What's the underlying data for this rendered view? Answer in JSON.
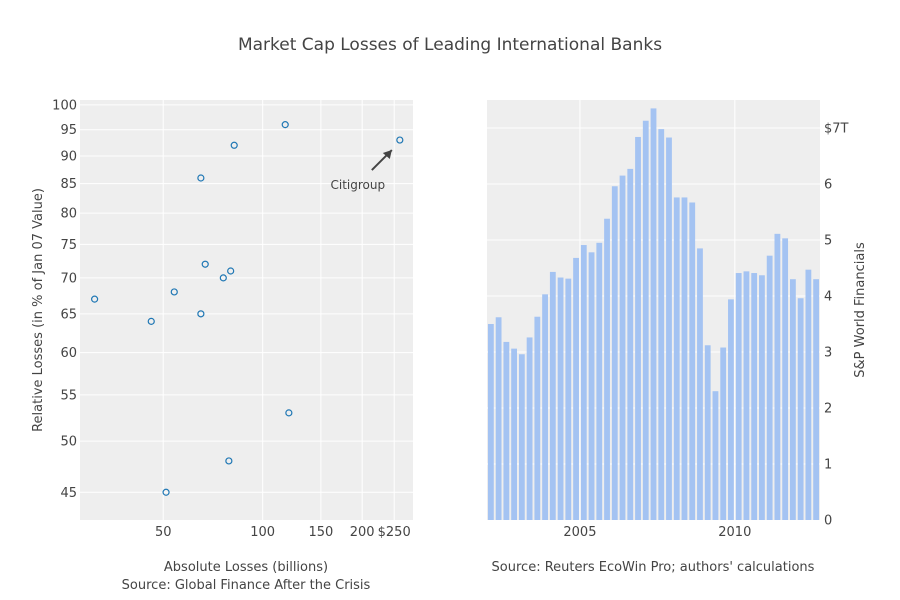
{
  "title": "Market Cap Losses of Leading International Banks",
  "chart_data": [
    {
      "type": "scatter",
      "x_scale": "log",
      "y_scale": "log",
      "xlim": [
        28,
        285
      ],
      "ylim": [
        42.5,
        101
      ],
      "x_ticks": [
        50,
        100,
        150,
        200,
        250
      ],
      "x_tick_labels": [
        "50",
        "100",
        "150",
        "200",
        "$250"
      ],
      "y_ticks": [
        45,
        50,
        55,
        60,
        65,
        70,
        75,
        80,
        85,
        90,
        95,
        100
      ],
      "y_tick_labels": [
        "45",
        "50",
        "55",
        "60",
        "65",
        "70",
        "75",
        "80",
        "85",
        "90",
        "95",
        "100"
      ],
      "xlabel": "Absolute Losses (billions)",
      "xlabel_source": "Source: Global Finance After the Crisis",
      "ylabel": "Relative Losses (in % of Jan 07 Value)",
      "grid": true,
      "points": [
        {
          "x": 31,
          "y": 67
        },
        {
          "x": 46,
          "y": 64
        },
        {
          "x": 51,
          "y": 45
        },
        {
          "x": 54,
          "y": 68
        },
        {
          "x": 65,
          "y": 65
        },
        {
          "x": 65,
          "y": 86
        },
        {
          "x": 67,
          "y": 72
        },
        {
          "x": 76,
          "y": 70
        },
        {
          "x": 79,
          "y": 48
        },
        {
          "x": 80,
          "y": 71
        },
        {
          "x": 82,
          "y": 92
        },
        {
          "x": 117,
          "y": 96
        },
        {
          "x": 120,
          "y": 53
        },
        {
          "x": 260,
          "y": 93
        }
      ],
      "annotations": [
        {
          "text": "Citigroup",
          "x": 260,
          "y": 93,
          "arrow": true
        }
      ]
    },
    {
      "type": "bar",
      "xlim": [
        2002.0,
        2012.75
      ],
      "ylim": [
        0,
        7.5
      ],
      "x_ticks": [
        2005,
        2010
      ],
      "x_tick_labels": [
        "2005",
        "2010"
      ],
      "y_ticks": [
        0,
        1,
        2,
        3,
        4,
        5,
        6,
        7
      ],
      "y_tick_labels": [
        "0",
        "1",
        "2",
        "3",
        "4",
        "5",
        "6",
        "$7T"
      ],
      "y_axis_side": "right",
      "ylabel": "S&P World Financials",
      "xlabel_source": "Source: Reuters EcoWin Pro; authors' calculations",
      "grid": true,
      "x_start": 2002.0,
      "x_step": 0.25,
      "values": [
        3.5,
        3.62,
        3.18,
        3.06,
        2.96,
        3.26,
        3.63,
        4.03,
        4.43,
        4.33,
        4.31,
        4.68,
        4.91,
        4.78,
        4.95,
        5.38,
        5.96,
        6.15,
        6.27,
        6.84,
        7.13,
        7.35,
        6.98,
        6.83,
        5.76,
        5.76,
        5.67,
        4.85,
        3.12,
        2.3,
        3.08,
        3.94,
        4.41,
        4.44,
        4.41,
        4.37,
        4.72,
        5.11,
        5.03,
        4.3,
        3.96,
        4.47,
        4.3,
        4.48
      ]
    }
  ]
}
